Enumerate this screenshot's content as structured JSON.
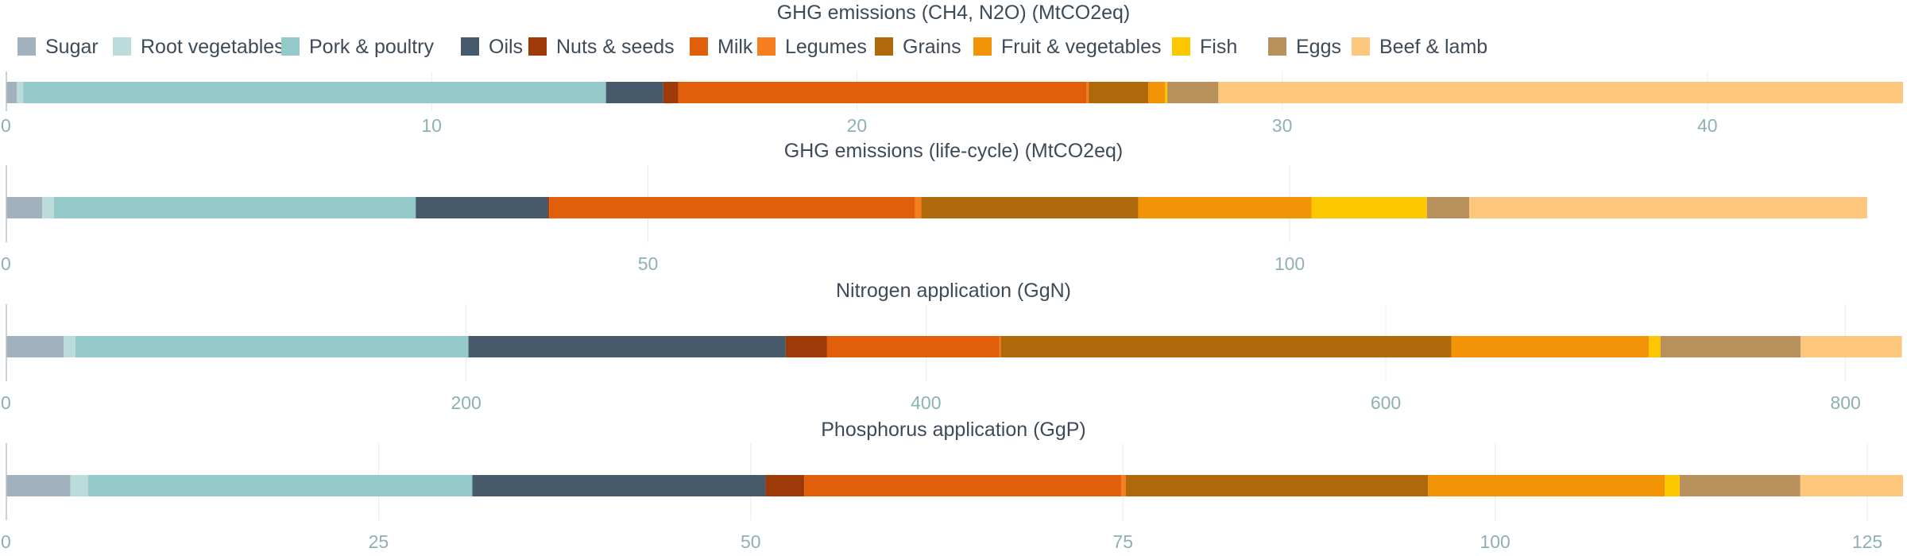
{
  "chart_data": {
    "type": "bar",
    "orientation": "horizontal",
    "stacked": true,
    "legend": {
      "position": "top-left",
      "entries": [
        "Sugar",
        "Root vegetables",
        "Pork & poultry",
        "Oils",
        "Nuts & seeds",
        "Milk",
        "Legumes",
        "Grains",
        "Fruit & vegetables",
        "Fish",
        "Eggs",
        "Beef & lamb"
      ]
    },
    "colors": {
      "Sugar": "#a2b1be",
      "Root vegetables": "#bcdcdb",
      "Pork & poultry": "#94c9c9",
      "Oils": "#475a6c",
      "Nuts & seeds": "#9e3a07",
      "Milk": "#e15f0b",
      "Legumes": "#f57e1f",
      "Grains": "#b0690a",
      "Fruit & vegetables": "#f39407",
      "Fish": "#fdc700",
      "Eggs": "#b7905c",
      "Beef & lamb": "#fcc77c"
    },
    "panels": [
      {
        "title": "GHG emissions (CH4, N2O) (MtCO2eq)",
        "xlim": [
          0,
          44.6
        ],
        "ticks": [
          "0",
          "10",
          "20",
          "30",
          "40"
        ],
        "tick_values": [
          0,
          10,
          20,
          30,
          40
        ],
        "values": [
          0.25,
          0.15,
          13.7,
          1.35,
          0.35,
          9.6,
          0.05,
          1.4,
          0.4,
          0.05,
          1.2,
          16.1
        ]
      },
      {
        "title": "GHG emissions (life-cycle) (MtCO2eq)",
        "xlim": [
          0,
          147.8
        ],
        "ticks": [
          "0",
          "50",
          "100"
        ],
        "tick_values": [
          0,
          50,
          100
        ],
        "values": [
          2.8,
          0.9,
          28.2,
          10.3,
          0.1,
          28.5,
          0.5,
          16.9,
          13.5,
          9.0,
          3.3,
          31.0
        ]
      },
      {
        "title": "Nitrogen application (GgN)",
        "xlim": [
          0,
          825
        ],
        "ticks": [
          "0",
          "200",
          "400",
          "600",
          "800"
        ],
        "tick_values": [
          0,
          200,
          400,
          600,
          800
        ],
        "values": [
          25,
          5,
          171,
          138,
          18,
          75,
          0.5,
          196,
          86,
          5,
          61,
          44
        ]
      },
      {
        "title": "Phosphorus application (GgP)",
        "xlim": [
          0,
          127.4
        ],
        "ticks": [
          "0",
          "25",
          "50",
          "75",
          "100",
          "125"
        ],
        "tick_values": [
          0,
          25,
          50,
          75,
          100,
          125
        ],
        "values": [
          4.3,
          1.2,
          25.8,
          19.7,
          2.6,
          21.3,
          0.3,
          20.3,
          15.9,
          1.0,
          8.1,
          6.9
        ]
      }
    ]
  }
}
